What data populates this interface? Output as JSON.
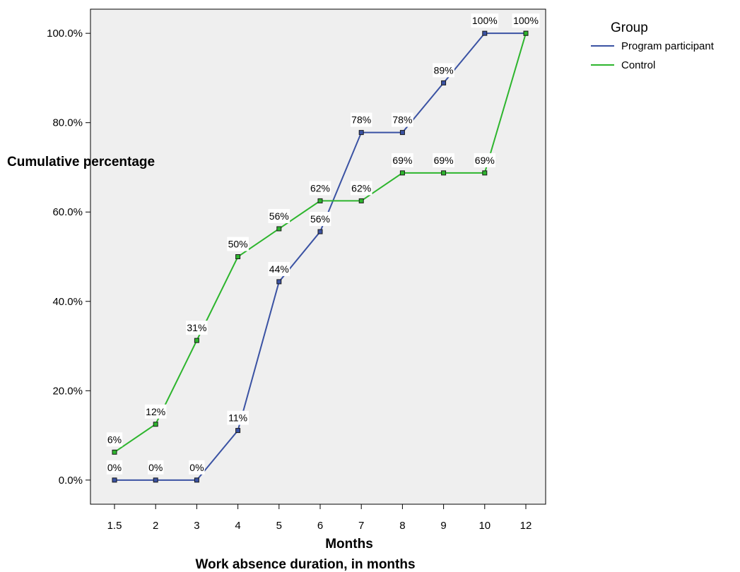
{
  "chart_data": {
    "type": "line",
    "categories": [
      "1.5",
      "2",
      "3",
      "4",
      "5",
      "6",
      "7",
      "8",
      "9",
      "10",
      "12"
    ],
    "series": [
      {
        "name": "Program participant",
        "color": "#3a52a3",
        "values": [
          0,
          0,
          0,
          11.1,
          44.4,
          55.6,
          77.8,
          77.8,
          88.9,
          100,
          100
        ],
        "labels": [
          "0%",
          "0%",
          "0%",
          "11%",
          "44%",
          "56%",
          "78%",
          "78%",
          "89%",
          "100%",
          "100%"
        ]
      },
      {
        "name": "Control",
        "color": "#2db52d",
        "values": [
          6.25,
          12.5,
          31.25,
          50,
          56.25,
          62.5,
          62.5,
          68.75,
          68.75,
          68.75,
          100
        ],
        "labels": [
          "6%",
          "12%",
          "31%",
          "50%",
          "56%",
          "62%",
          "62%",
          "69%",
          "69%",
          "69%",
          ""
        ]
      }
    ],
    "yticks": [
      0,
      20,
      40,
      60,
      80,
      100
    ],
    "ytick_labels": [
      "0.0%",
      "20.0%",
      "40.0%",
      "60.0%",
      "80.0%",
      "100.0%"
    ],
    "ylim": [
      -5.4,
      105.4
    ],
    "ylabel": "Cumulative percentage",
    "xlabel": "Months",
    "subtitle": "Work absence duration, in months",
    "legend_title": "Group",
    "legend_position": "top-right",
    "plot_background": "#efefef",
    "grid": false
  }
}
